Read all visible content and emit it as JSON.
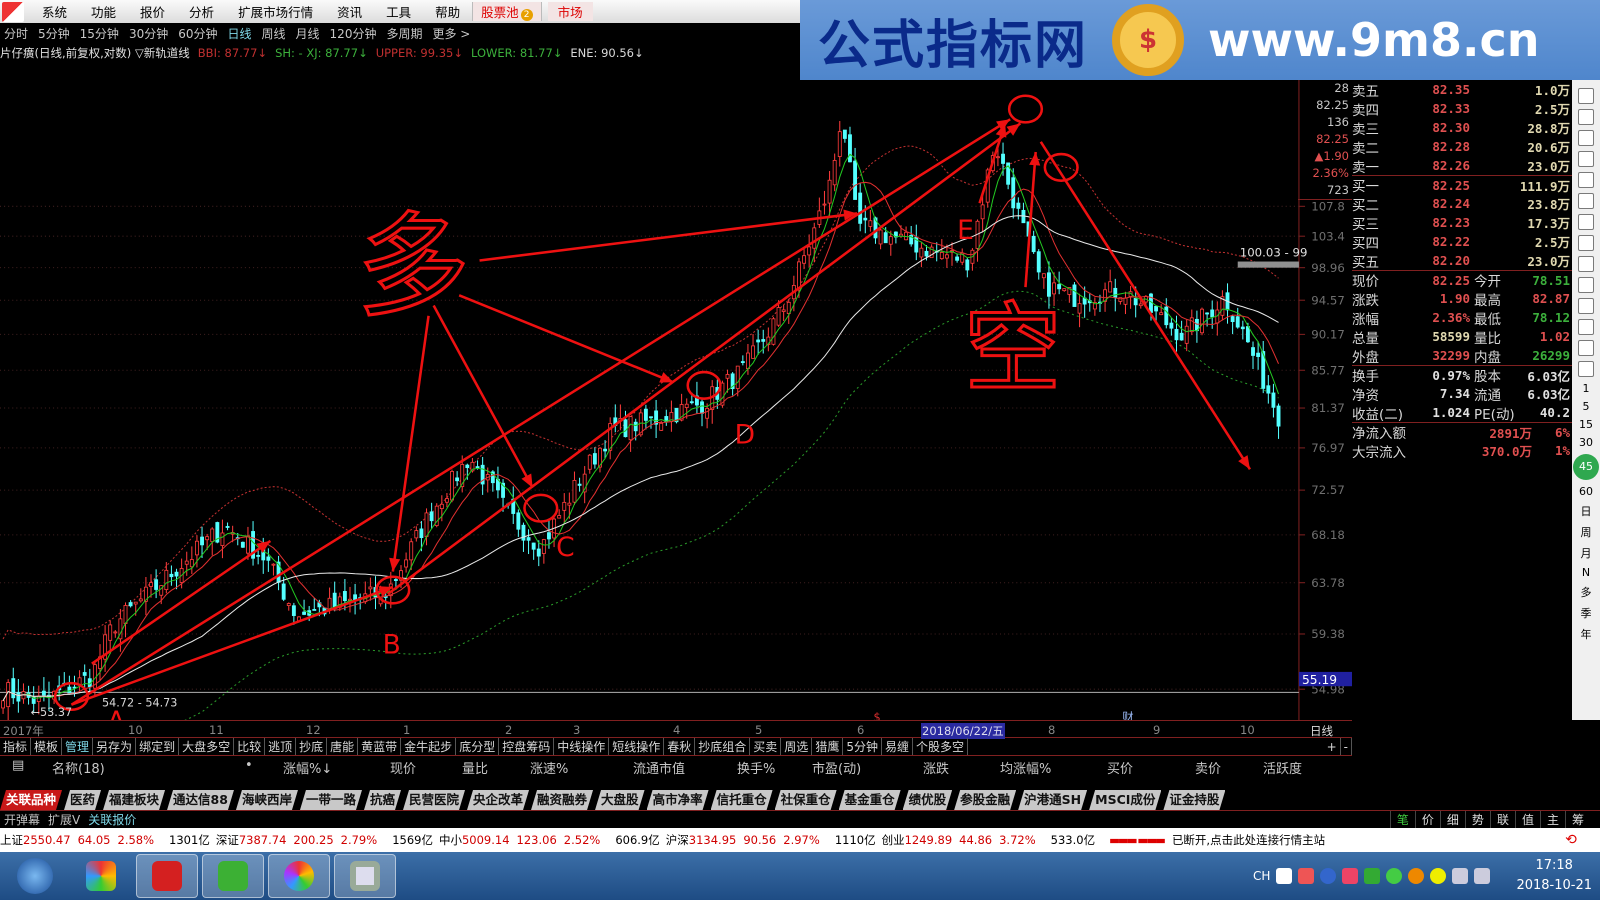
{
  "menu": {
    "items": [
      "系统",
      "功能",
      "报价",
      "分析",
      "扩展市场行情",
      "资讯",
      "工具",
      "帮助"
    ],
    "pool": "股票池",
    "pool_badge": "2",
    "market": "市场"
  },
  "watermark": {
    "name": "公式指标网",
    "url": "www.9m8.cn",
    "seal": "$"
  },
  "periods": {
    "items": [
      "分时",
      "5分钟",
      "15分钟",
      "30分钟",
      "60分钟",
      "日线",
      "周线",
      "月线",
      "120分钟",
      "多周期",
      "更多 >"
    ],
    "active": "日线"
  },
  "indicator_line": {
    "title": "片仔癀(日线,前复权,对数) ▽新轨道线",
    "items": [
      {
        "text": "BBI: 87.77↓",
        "color": "#c03030"
      },
      {
        "text": "SH: - XJ: 87.77↓",
        "color": "#3cb03c"
      },
      {
        "text": "UPPER: 99.35↓",
        "color": "#c03030"
      },
      {
        "text": "LOWER: 81.77↓",
        "color": "#3cb03c"
      },
      {
        "text": "ENE: 90.56↓",
        "color": "#d8d8d8"
      }
    ]
  },
  "chart_data": {
    "type": "candlestick",
    "scale": "log",
    "price_ticks": [
      "107.8",
      "103.4",
      "98.96",
      "94.57",
      "90.17",
      "85.77",
      "81.37",
      "76.97",
      "72.57",
      "68.18",
      "63.78",
      "59.38",
      "54.98"
    ],
    "current_price_marker": "55.19",
    "close_path": [
      [
        0,
        55
      ],
      [
        40,
        54
      ],
      [
        90,
        56
      ],
      [
        110,
        60
      ],
      [
        160,
        64
      ],
      [
        220,
        69
      ],
      [
        260,
        66
      ],
      [
        290,
        61
      ],
      [
        340,
        62
      ],
      [
        380,
        63
      ],
      [
        420,
        70
      ],
      [
        460,
        76
      ],
      [
        500,
        70
      ],
      [
        530,
        67
      ],
      [
        570,
        74
      ],
      [
        600,
        79
      ],
      [
        640,
        80
      ],
      [
        690,
        82
      ],
      [
        730,
        86
      ],
      [
        770,
        94
      ],
      [
        800,
        105
      ],
      [
        815,
        112
      ],
      [
        825,
        123
      ],
      [
        840,
        105
      ],
      [
        880,
        103
      ],
      [
        920,
        101
      ],
      [
        950,
        100
      ],
      [
        975,
        118
      ],
      [
        995,
        108
      ],
      [
        1020,
        97
      ],
      [
        1050,
        95
      ],
      [
        1100,
        96
      ],
      [
        1120,
        94
      ],
      [
        1160,
        90
      ],
      [
        1200,
        95
      ],
      [
        1220,
        90
      ],
      [
        1255,
        80
      ]
    ],
    "labels": {
      "low": "←53.37",
      "low_range": "54.72 - 54.73",
      "high_range": "100.03 - 99"
    },
    "x_ticks": [
      "2017年",
      "10",
      "11",
      "12",
      "1",
      "2",
      "3",
      "4",
      "5",
      "6",
      "2018/06/22/五",
      "8",
      "9",
      "10"
    ],
    "period_label": "日线",
    "markers": [
      "$",
      "财"
    ],
    "annotations": {
      "points": [
        "A",
        "B",
        "C",
        "D",
        "E"
      ],
      "long": "多",
      "short": "空"
    },
    "colors": {
      "up": "#ff3c3c",
      "down": "#54ffff",
      "ma_short": "#22c822",
      "ma_mid": "#e03030",
      "ma_long": "#e8e8e8",
      "upper": "#c03030",
      "lower": "#2a9a2a",
      "annotation": "#ee1111"
    }
  },
  "mini_quote": [
    "28",
    "82.25",
    "136",
    "82.25",
    "▲1.90",
    "2.36%",
    "723"
  ],
  "orderbook": {
    "asks": [
      {
        "label": "卖五",
        "price": "82.35",
        "vol": "1.0万"
      },
      {
        "label": "卖四",
        "price": "82.33",
        "vol": "2.5万"
      },
      {
        "label": "卖三",
        "price": "82.30",
        "vol": "28.8万"
      },
      {
        "label": "卖二",
        "price": "82.28",
        "vol": "20.6万"
      },
      {
        "label": "卖一",
        "price": "82.26",
        "vol": "23.0万"
      }
    ],
    "bids": [
      {
        "label": "买一",
        "price": "82.25",
        "vol": "111.9万"
      },
      {
        "label": "买二",
        "price": "82.24",
        "vol": "23.8万"
      },
      {
        "label": "买三",
        "price": "82.23",
        "vol": "17.3万"
      },
      {
        "label": "买四",
        "price": "82.22",
        "vol": "2.5万"
      },
      {
        "label": "买五",
        "price": "82.20",
        "vol": "23.0万"
      }
    ],
    "stats": [
      {
        "l": "现价",
        "v": "82.25",
        "vc": "#e05050",
        "k": "今开",
        "w": "78.51",
        "wc": "#3cb03c"
      },
      {
        "l": "涨跌",
        "v": "1.90",
        "vc": "#e05050",
        "k": "最高",
        "w": "82.87",
        "wc": "#e05050"
      },
      {
        "l": "涨幅",
        "v": "2.36%",
        "vc": "#e05050",
        "k": "最低",
        "w": "78.12",
        "wc": "#3cb03c"
      },
      {
        "l": "总量",
        "v": "58599",
        "vc": "#e0d8b0",
        "k": "量比",
        "w": "1.02",
        "wc": "#e05050"
      },
      {
        "l": "外盘",
        "v": "32299",
        "vc": "#e05050",
        "k": "内盘",
        "w": "26299",
        "wc": "#3cb03c"
      }
    ],
    "fund": [
      {
        "l": "换手",
        "v": "0.97%",
        "k": "股本",
        "w": "6.03亿"
      },
      {
        "l": "净资",
        "v": "7.34",
        "k": "流通",
        "w": "6.03亿"
      },
      {
        "l": "收益(二)",
        "v": "1.024",
        "k": "PE(动)",
        "w": "40.2"
      }
    ],
    "flow": [
      {
        "l": "净流入额",
        "v": "2891万",
        "p": "6%"
      },
      {
        "l": "大宗流入",
        "v": "370.0万",
        "p": "1%"
      }
    ]
  },
  "sidebar_strip": [
    "1",
    "5",
    "15",
    "30",
    "45",
    "60",
    "日",
    "周",
    "月",
    "N",
    "多",
    "季",
    "年"
  ],
  "tools": {
    "items": [
      "指标",
      "模板",
      "管理",
      "另存为",
      "绑定到",
      "大盘多空",
      "比较",
      "逃顶",
      "抄底",
      "唐能",
      "黄蓝带",
      "金牛起步",
      "底分型",
      "控盘筹码",
      "中线操作",
      "短线操作",
      "春秋",
      "抄底组合",
      "买卖",
      "周选",
      "猎鹰",
      "5分钟",
      "易缠",
      "个股多空"
    ],
    "active": "管理",
    "plus": "+",
    "minus": "-"
  },
  "list_header": [
    "名称(18)",
    "•",
    "涨幅%↓",
    "现价",
    "量比",
    "涨速%",
    "流通市值",
    "换手%",
    "市盈(动)",
    "涨跌",
    "均涨幅%",
    "买价",
    "卖价",
    "活跃度"
  ],
  "sectors": {
    "items": [
      "关联品种",
      "医药",
      "福建板块",
      "通达信88",
      "海峡西岸",
      "一带一路",
      "抗癌",
      "民营医院",
      "央企改革",
      "融资融券",
      "大盘股",
      "高市净率",
      "信托重仓",
      "社保重仓",
      "基金重仓",
      "绩优股",
      "参股金融",
      "沪港通SH",
      "MSCI成份",
      "证金持股"
    ],
    "active": "关联品种"
  },
  "bottom_bar": {
    "items": [
      "开弹幕",
      "扩展V",
      "关联报价"
    ],
    "right_tabs": [
      "笔",
      "价",
      "细",
      "势",
      "联",
      "值",
      "主",
      "筹"
    ],
    "right_active": "笔"
  },
  "indices": [
    {
      "name": "上证",
      "val": "2550.47",
      "chg": "64.05",
      "pct": "2.58%",
      "amt": "1301亿"
    },
    {
      "name": "深证",
      "val": "7387.74",
      "chg": "200.25",
      "pct": "2.79%",
      "amt": "1569亿"
    },
    {
      "name": "中小",
      "val": "5009.14",
      "chg": "123.06",
      "pct": "2.52%",
      "amt": "606.9亿"
    },
    {
      "name": "沪深",
      "val": "3134.95",
      "chg": "90.56",
      "pct": "2.97%",
      "amt": "1110亿"
    },
    {
      "name": "创业",
      "val": "1249.89",
      "chg": "44.86",
      "pct": "3.72%",
      "amt": "533.0亿"
    }
  ],
  "status": "已断开,点击此处连接行情主站",
  "taskbar": {
    "lang": "CH",
    "time": "17:18",
    "date": "2018-10-21"
  }
}
